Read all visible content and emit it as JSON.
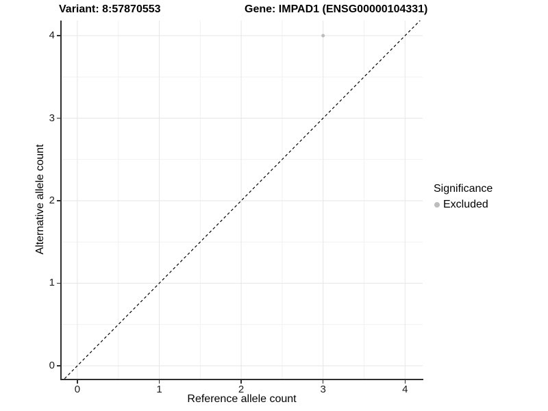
{
  "chart_data": {
    "type": "scatter",
    "title_left": "Variant: 8:57870553",
    "title_right": "Gene: IMPAD1 (ENSG00000104331)",
    "xlabel": "Reference allele count",
    "ylabel": "Alternative allele count",
    "xticks": [
      0,
      1,
      2,
      3,
      4
    ],
    "xtick_labels": [
      "0",
      "1",
      "2",
      "3",
      "4"
    ],
    "yticks": [
      0,
      1,
      2,
      3,
      4
    ],
    "ytick_labels": [
      "0",
      "1",
      "2",
      "3",
      "4"
    ],
    "xminor": [
      0.5,
      1.5,
      2.5,
      3.5
    ],
    "yminor": [
      0.5,
      1.5,
      2.5,
      3.5
    ],
    "xlim": [
      -0.2,
      4.215
    ],
    "ylim": [
      -0.158,
      4.183
    ],
    "grid": true,
    "legend_position": "right",
    "identity_line": {
      "present": true,
      "style": "dashed",
      "color": "#000000",
      "slope": 1,
      "intercept": 0
    },
    "points": [
      {
        "x": 3,
        "y": 4,
        "significance": "Excluded"
      }
    ],
    "legend": {
      "title": "Significance",
      "items": [
        {
          "label": "Excluded",
          "color": "#bdbdbd"
        }
      ]
    },
    "colors": {
      "background": "#ffffff",
      "grid_major": "#e6e6e6",
      "grid_minor": "#f1f1f1",
      "axis_line": "#2e2e2e",
      "text": "#000000",
      "point_excluded": "#bdbdbd"
    }
  }
}
